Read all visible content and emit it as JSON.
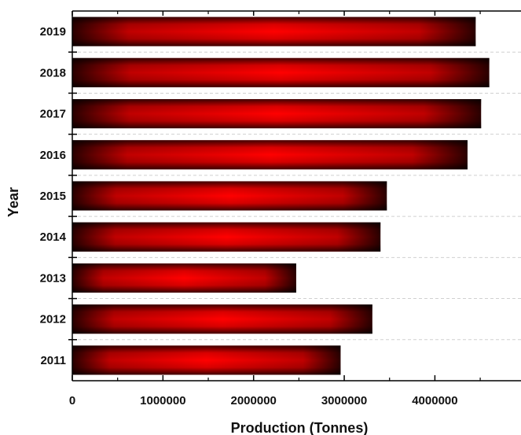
{
  "chart_data": {
    "type": "bar",
    "orientation": "horizontal",
    "categories": [
      "2019",
      "2018",
      "2017",
      "2016",
      "2015",
      "2014",
      "2013",
      "2012",
      "2011"
    ],
    "values": [
      4450000,
      4600000,
      4510000,
      4360000,
      3470000,
      3400000,
      2470000,
      3310000,
      2960000
    ],
    "xlabel": "Production (Tonnes)",
    "ylabel": "Year",
    "xticks": [
      0,
      1000000,
      2000000,
      3000000,
      4000000
    ],
    "xtick_labels": [
      "0",
      "1000000",
      "2000000",
      "3000000",
      "4000000"
    ],
    "xlim": [
      0,
      4950000
    ],
    "grid": "dashed horizontal",
    "bar_colors": {
      "center": "#ff0000",
      "mid": "#d80000",
      "edge": "#2a0000"
    }
  }
}
